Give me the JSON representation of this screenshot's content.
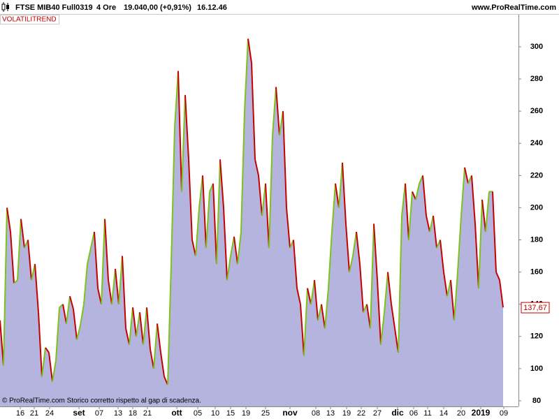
{
  "header": {
    "instrument": "FTSE MIB40 Full0319",
    "timeframe": "4 Ore",
    "quote": "19.040,00 (+0,91%)",
    "time": "16.12.46",
    "site": "www.ProRealTime.com"
  },
  "footer": "© ProRealTime.com  Storico corretto rispetto al gap di scadenza.",
  "chart_data": {
    "type": "area",
    "title": "VOLATILITREND",
    "series": [
      {
        "color": "#b4b4de",
        "up_color": "#7cc21a",
        "down_color": "#c40000",
        "values": [
          130,
          102,
          200,
          185,
          153,
          155,
          193,
          175,
          180,
          155,
          165,
          135,
          95,
          113,
          110,
          92,
          105,
          138,
          140,
          128,
          145,
          137,
          118,
          127,
          140,
          165,
          175,
          185,
          150,
          140,
          193,
          155,
          140,
          162,
          140,
          170,
          125,
          115,
          138,
          120,
          135,
          115,
          138,
          112,
          100,
          128,
          110,
          95,
          90,
          165,
          250,
          285,
          210,
          270,
          230,
          180,
          170,
          200,
          220,
          175,
          210,
          215,
          165,
          230,
          200,
          155,
          170,
          182,
          165,
          185,
          260,
          305,
          290,
          230,
          220,
          195,
          215,
          175,
          245,
          275,
          245,
          260,
          200,
          175,
          180,
          150,
          140,
          108,
          150,
          140,
          155,
          130,
          140,
          125,
          150,
          185,
          215,
          200,
          228,
          190,
          160,
          170,
          185,
          165,
          135,
          140,
          125,
          190,
          155,
          115,
          135,
          160,
          140,
          125,
          110,
          195,
          215,
          180,
          210,
          205,
          215,
          220,
          195,
          185,
          195,
          175,
          180,
          160,
          145,
          155,
          130,
          160,
          195,
          225,
          215,
          220,
          190,
          150,
          205,
          185,
          210,
          210,
          160,
          155,
          138
        ]
      }
    ],
    "last_value": {
      "value": 137.67,
      "label": "137,67"
    },
    "xlim": [
      0,
      144
    ],
    "ylim": [
      76.5,
      320.4
    ],
    "yticks": [
      80,
      100,
      120,
      140,
      160,
      180,
      200,
      220,
      240,
      260,
      280,
      300
    ],
    "xticks": [
      {
        "value": 5.8,
        "label": "16"
      },
      {
        "value": 9.8,
        "label": "21"
      },
      {
        "value": 14.2,
        "label": "24"
      },
      {
        "value": 22.6,
        "label": "set"
      },
      {
        "value": 28.4,
        "label": "07"
      },
      {
        "value": 33.8,
        "label": "13"
      },
      {
        "value": 38,
        "label": "18"
      },
      {
        "value": 42.2,
        "label": "21"
      },
      {
        "value": 50.6,
        "label": "ott"
      },
      {
        "value": 56.6,
        "label": "05"
      },
      {
        "value": 61.6,
        "label": "10"
      },
      {
        "value": 66,
        "label": "15"
      },
      {
        "value": 70.4,
        "label": "19"
      },
      {
        "value": 76,
        "label": "25"
      },
      {
        "value": 83,
        "label": "nov"
      },
      {
        "value": 90.4,
        "label": "08"
      },
      {
        "value": 94.6,
        "label": "13"
      },
      {
        "value": 99.2,
        "label": "19"
      },
      {
        "value": 103.4,
        "label": "22"
      },
      {
        "value": 108,
        "label": "27"
      },
      {
        "value": 113.8,
        "label": "dic"
      },
      {
        "value": 118.4,
        "label": "06"
      },
      {
        "value": 122.4,
        "label": "11"
      },
      {
        "value": 127,
        "label": "14"
      },
      {
        "value": 132,
        "label": "20"
      },
      {
        "value": 137.6,
        "label": "2019"
      },
      {
        "value": 144.2,
        "label": "09"
      }
    ],
    "bold_labels": [
      "set",
      "ott",
      "nov",
      "dic",
      "2019"
    ]
  }
}
